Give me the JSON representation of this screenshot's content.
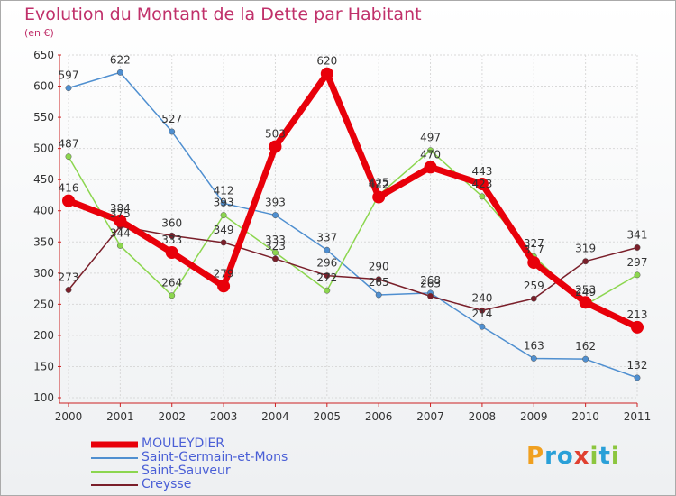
{
  "chart_data": {
    "type": "line",
    "title": "Evolution du Montant de la Dette par Habitant",
    "subtitle": "(en €)",
    "x": [
      "2000",
      "2001",
      "2002",
      "2003",
      "2004",
      "2005",
      "2006",
      "2007",
      "2008",
      "2009",
      "2010",
      "2011"
    ],
    "ylim": [
      100,
      650
    ],
    "yticks": [
      100,
      150,
      200,
      250,
      300,
      350,
      400,
      450,
      500,
      550,
      600,
      650
    ],
    "grid": true,
    "legend_position": "bottom-left",
    "series": [
      {
        "name": "MOULEYDIER",
        "color": "#e8000a",
        "values": [
          416,
          384,
          333,
          279,
          503,
          620,
          422,
          470,
          443,
          317,
          253,
          213
        ]
      },
      {
        "name": "Saint-Germain-et-Mons",
        "color": "#4f8fd0",
        "values": [
          597,
          622,
          527,
          412,
          393,
          337,
          265,
          268,
          214,
          163,
          162,
          132
        ]
      },
      {
        "name": "Saint-Sauveur",
        "color": "#8cd64f",
        "values": [
          487,
          344,
          264,
          393,
          333,
          272,
          425,
          497,
          423,
          327,
          249,
          297
        ]
      },
      {
        "name": "Creysse",
        "color": "#7a1f2a",
        "values": [
          273,
          375,
          360,
          349,
          323,
          296,
          290,
          263,
          240,
          259,
          319,
          341
        ]
      }
    ]
  },
  "logo_text": "Proxiti"
}
